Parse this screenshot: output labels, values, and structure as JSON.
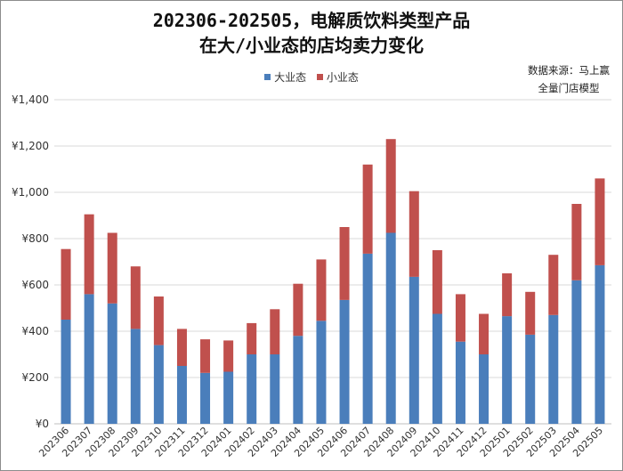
{
  "title_line1": "202306-202505，电解质饮料类型产品",
  "title_line2": "在大/小业态的店均卖力变化",
  "source_line1": "数据来源：马上赢",
  "source_line2": "全量门店模型",
  "colors": {
    "large": "#4a7ebb",
    "small": "#c0504d",
    "grid": "#d9d9d9",
    "axis": "#bfbfbf",
    "text": "#333333"
  },
  "chart_data": {
    "type": "bar",
    "stacked": true,
    "categories": [
      "202306",
      "202307",
      "202308",
      "202309",
      "202310",
      "202311",
      "202312",
      "202401",
      "202402",
      "202403",
      "202404",
      "202405",
      "202406",
      "202407",
      "202408",
      "202409",
      "202410",
      "202411",
      "202412",
      "202501",
      "202502",
      "202503",
      "202504",
      "202505"
    ],
    "series": [
      {
        "name": "大业态",
        "values": [
          450,
          560,
          520,
          410,
          340,
          250,
          220,
          225,
          300,
          300,
          380,
          445,
          535,
          735,
          825,
          635,
          475,
          355,
          300,
          465,
          385,
          470,
          620,
          685
        ]
      },
      {
        "name": "小业态",
        "values": [
          305,
          345,
          305,
          270,
          210,
          160,
          145,
          135,
          135,
          195,
          225,
          265,
          315,
          385,
          405,
          370,
          275,
          205,
          175,
          185,
          185,
          260,
          330,
          375
        ]
      }
    ],
    "yticks": [
      "¥0",
      "¥200",
      "¥400",
      "¥600",
      "¥800",
      "¥1,000",
      "¥1,200",
      "¥1,400"
    ],
    "ylim": [
      0,
      1400
    ],
    "legend_position": "top-center",
    "grid": true
  }
}
